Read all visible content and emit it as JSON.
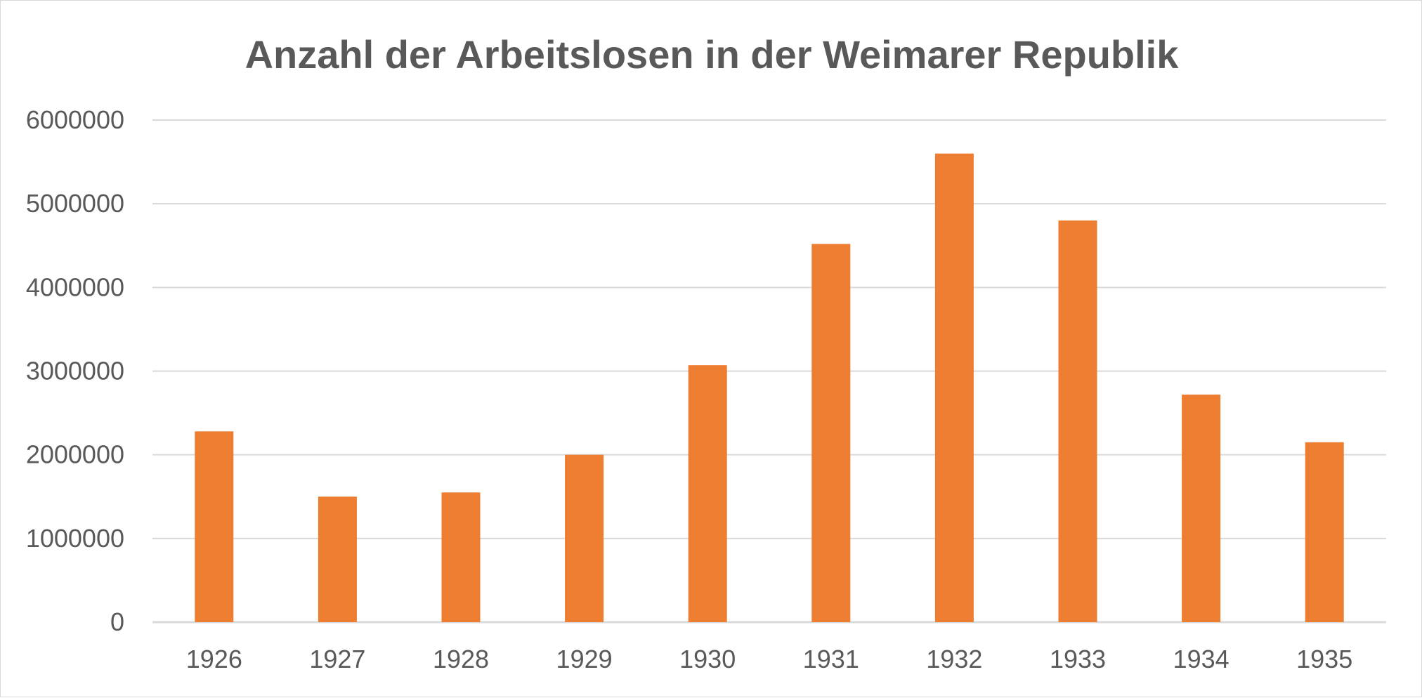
{
  "chart_data": {
    "type": "bar",
    "title": "Anzahl der Arbeitslosen in der Weimarer Republik",
    "xlabel": "",
    "ylabel": "",
    "categories": [
      "1926",
      "1927",
      "1928",
      "1929",
      "1930",
      "1931",
      "1932",
      "1933",
      "1934",
      "1935"
    ],
    "values": [
      2280000,
      1500000,
      1550000,
      2000000,
      3070000,
      4520000,
      5600000,
      4800000,
      2720000,
      2150000
    ],
    "ylim": [
      0,
      6000000
    ],
    "yticks": [
      0,
      1000000,
      2000000,
      3000000,
      4000000,
      5000000,
      6000000
    ],
    "ytick_labels": [
      "0",
      "1000000",
      "2000000",
      "3000000",
      "4000000",
      "5000000",
      "6000000"
    ],
    "grid": true,
    "legend": "none",
    "bar_color": "#ED7D31",
    "grid_color": "#D9D9D9",
    "text_color": "#595959"
  }
}
